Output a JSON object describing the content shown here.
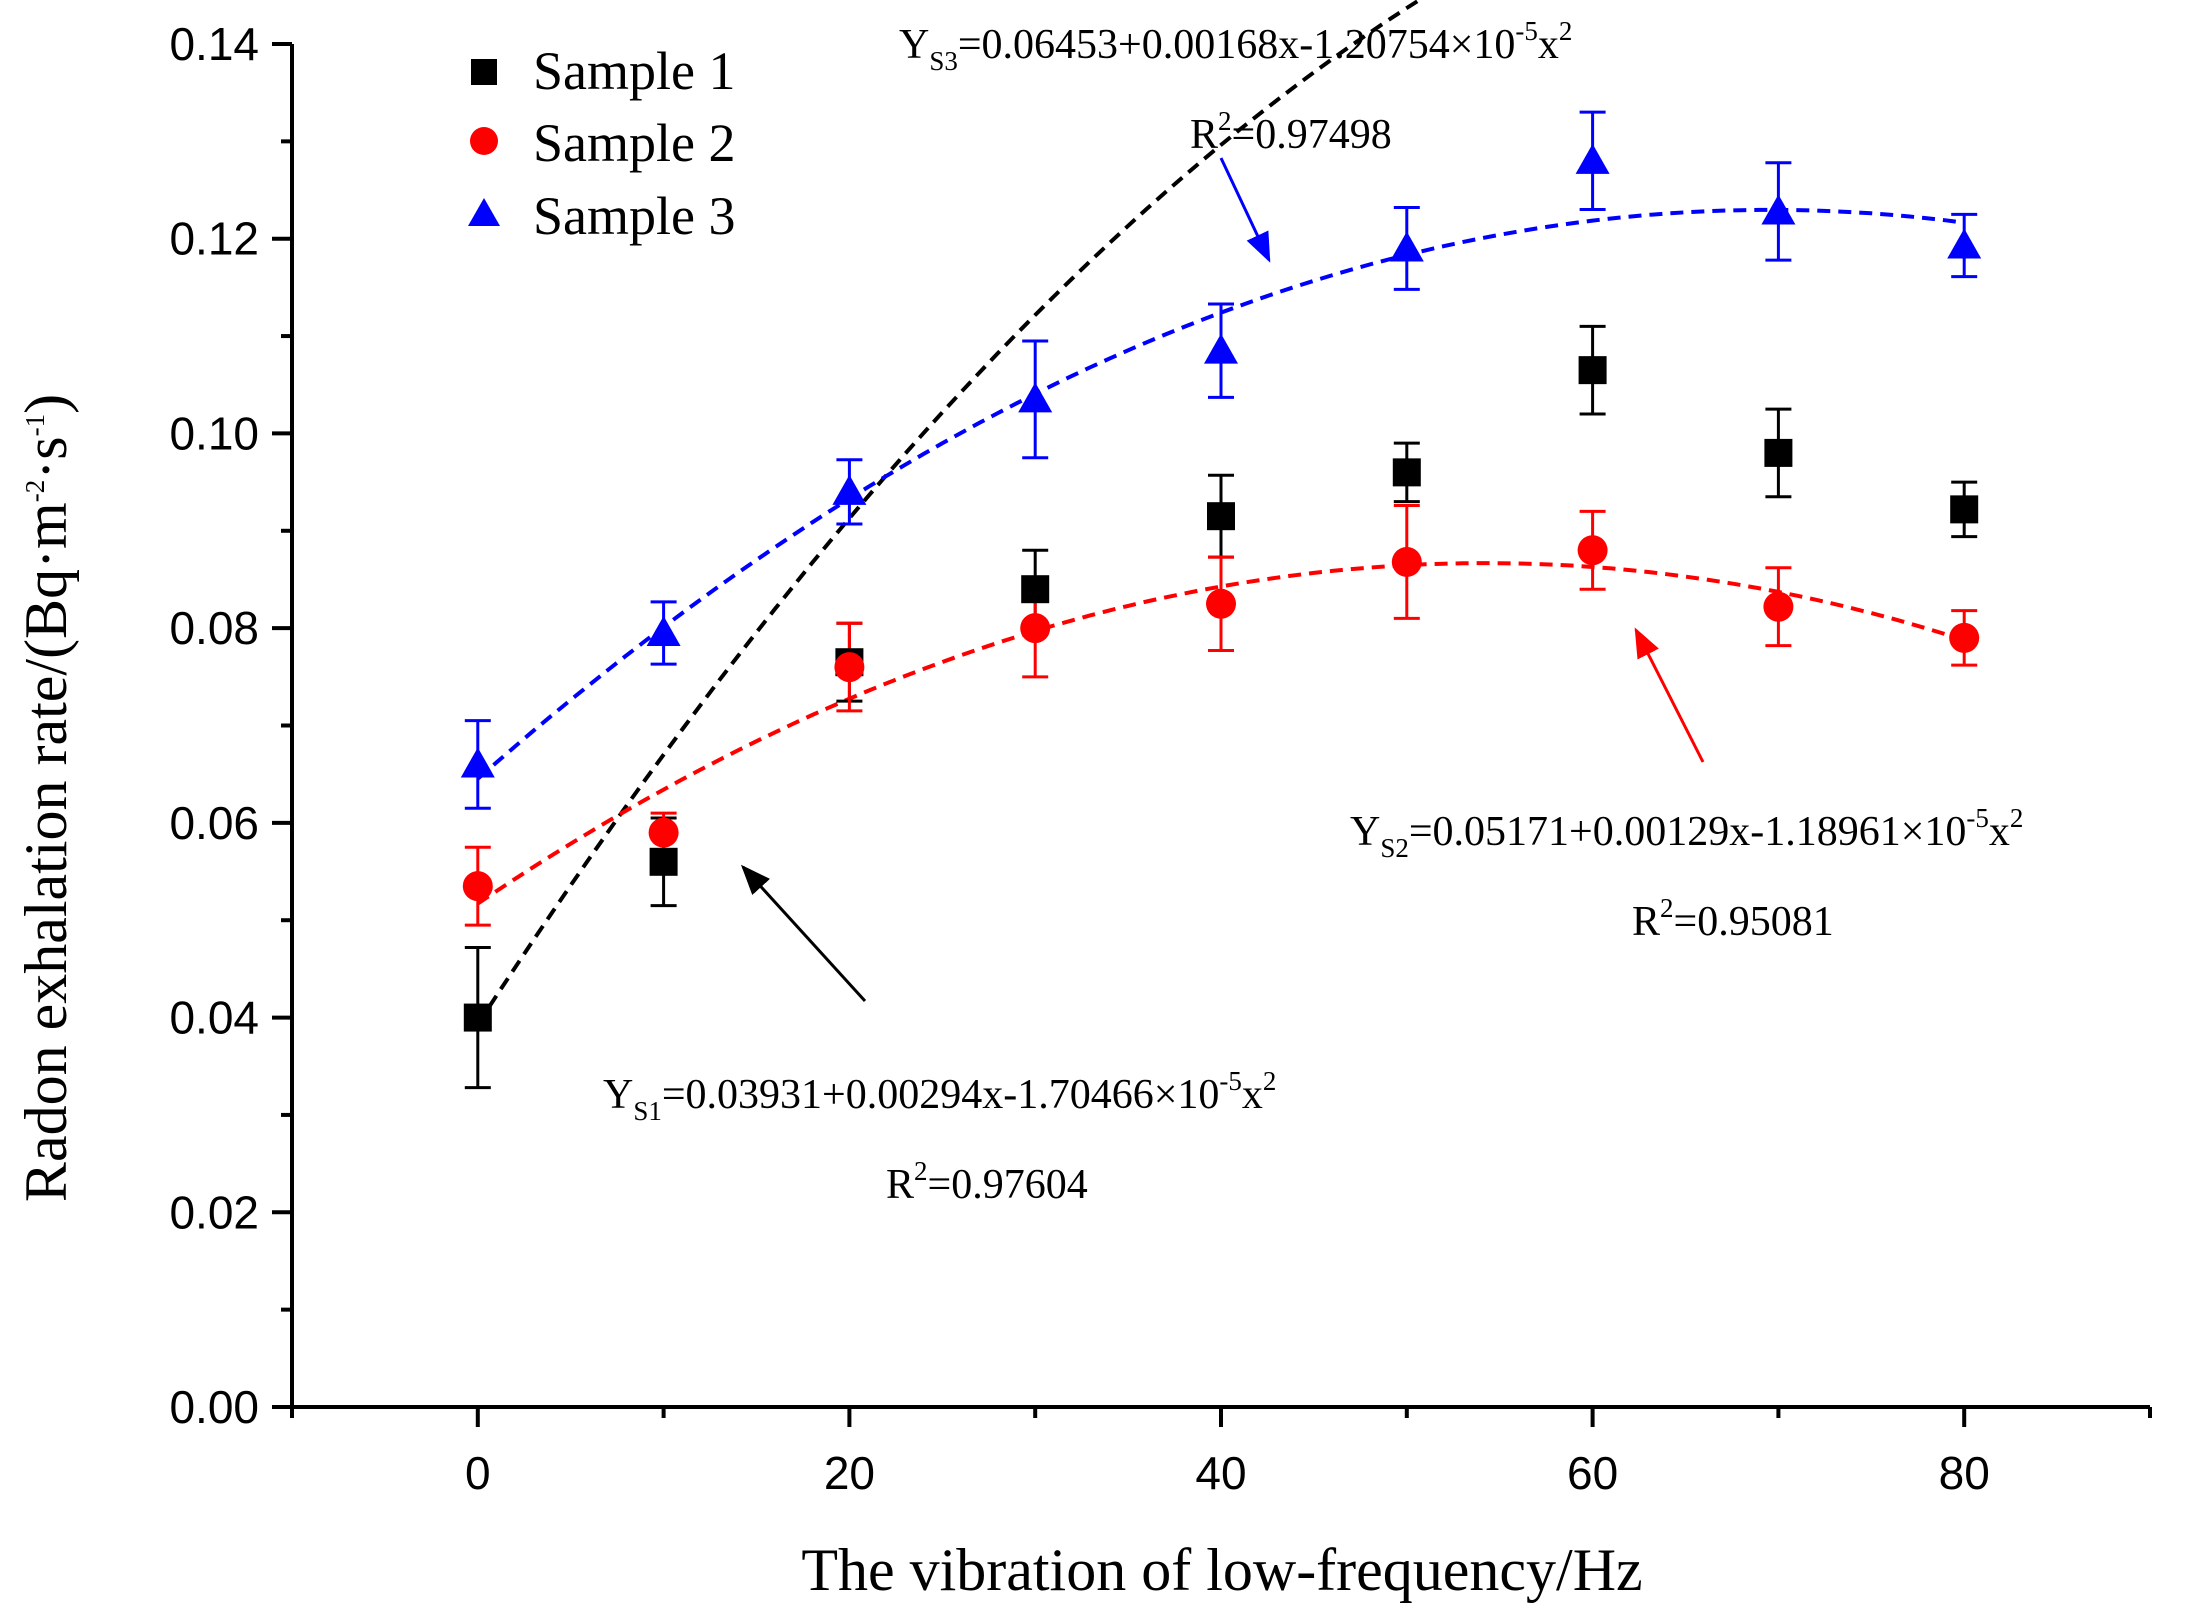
{
  "chart_data": {
    "type": "scatter",
    "xlabel": "The vibration of low-frequency/Hz",
    "ylabel": "Radon exhalation rate/(Bq·m⁻²·s⁻¹)",
    "ylabel_parts": {
      "base": "Radon exhalation rate/(Bq·m",
      "exp1": "-2",
      "mid": "·s",
      "exp2": "-1",
      "end": ")"
    },
    "xlim": [
      -10,
      90
    ],
    "ylim": [
      0,
      0.14
    ],
    "x_ticks": [
      0,
      20,
      40,
      60,
      80
    ],
    "x_tick_labels": [
      "0",
      "20",
      "40",
      "60",
      "80"
    ],
    "x_minor_ticks": [
      -10,
      10,
      30,
      50,
      70,
      90
    ],
    "y_ticks": [
      0.0,
      0.02,
      0.04,
      0.06,
      0.08,
      0.1,
      0.12,
      0.14
    ],
    "y_tick_labels": [
      "0.00",
      "0.02",
      "0.04",
      "0.06",
      "0.08",
      "0.10",
      "0.12",
      "0.14"
    ],
    "y_minor_ticks": [
      0.01,
      0.03,
      0.05,
      0.07,
      0.09,
      0.11,
      0.13
    ],
    "x": [
      0,
      10,
      20,
      30,
      40,
      50,
      60,
      70,
      80
    ],
    "series": [
      {
        "name": "Sample 1",
        "marker": "square",
        "color": "#000000",
        "values": [
          0.04,
          0.056,
          0.0765,
          0.084,
          0.0915,
          0.096,
          0.1065,
          0.098,
          0.0922
        ],
        "errors": [
          0.0072,
          0.0045,
          0.004,
          0.004,
          0.0042,
          0.003,
          0.0045,
          0.0045,
          0.0028
        ],
        "fit": {
          "a": 0.03931,
          "b": 0.00294,
          "c": -1.70466e-05
        }
      },
      {
        "name": "Sample 2",
        "marker": "circle",
        "color": "#ff0000",
        "values": [
          0.0535,
          0.059,
          0.076,
          0.08,
          0.0825,
          0.0868,
          0.088,
          0.0822,
          0.079
        ],
        "errors": [
          0.004,
          0.002,
          0.0045,
          0.005,
          0.0048,
          0.0058,
          0.004,
          0.004,
          0.0028
        ],
        "fit": {
          "a": 0.05171,
          "b": 0.00129,
          "c": -1.18961e-05
        }
      },
      {
        "name": "Sample 3",
        "marker": "triangle",
        "color": "#0000ff",
        "values": [
          0.066,
          0.0795,
          0.094,
          0.1035,
          0.1085,
          0.119,
          0.128,
          0.1228,
          0.1193
        ],
        "errors": [
          0.0045,
          0.0032,
          0.0033,
          0.006,
          0.0048,
          0.0042,
          0.005,
          0.005,
          0.0032
        ],
        "fit": {
          "a": 0.06453,
          "b": 0.00168,
          "c": -1.20754e-05
        }
      }
    ],
    "annotations": [
      {
        "series": "Sample 3",
        "eq_main": "Y",
        "eq_sub": "S3",
        "eq_body": "=0.06453+0.00168x-1.20754×10",
        "eq_exp": "-5",
        "eq_tail": "x",
        "eq_tail_exp": "2",
        "r2_label": "R",
        "r2_exp": "2",
        "r2_value": "=0.97498",
        "arrow_color": "#0000ff"
      },
      {
        "series": "Sample 2",
        "eq_main": "Y",
        "eq_sub": "S2",
        "eq_body": "=0.05171+0.00129x-1.18961×10",
        "eq_exp": "-5",
        "eq_tail": "x",
        "eq_tail_exp": "2",
        "r2_label": "R",
        "r2_exp": "2",
        "r2_value": "=0.95081",
        "arrow_color": "#ff0000"
      },
      {
        "series": "Sample 1",
        "eq_main": "Y",
        "eq_sub": "S1",
        "eq_body": "=0.03931+0.00294x-1.70466×10",
        "eq_exp": "-5",
        "eq_tail": "x",
        "eq_tail_exp": "2",
        "r2_label": "R",
        "r2_exp": "2",
        "r2_value": "=0.97604",
        "arrow_color": "#000000"
      }
    ],
    "legend": "top-left",
    "grid": false
  }
}
